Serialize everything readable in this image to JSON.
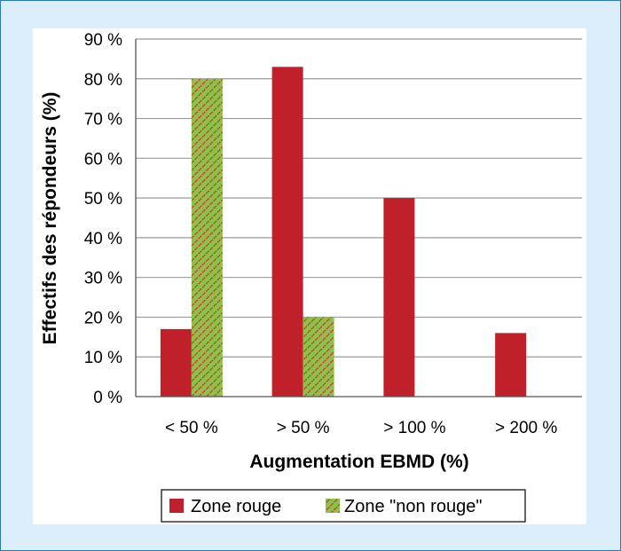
{
  "chart_data": {
    "type": "bar",
    "categories": [
      "< 50 %",
      "> 50 %",
      "> 100 %",
      "> 200 %"
    ],
    "series": [
      {
        "name": "Zone rouge",
        "values": [
          17,
          83,
          50,
          16
        ],
        "color": "#c0202a",
        "pattern": "solid"
      },
      {
        "name": "Zone \"non rouge\"",
        "values": [
          80,
          20,
          null,
          null
        ],
        "color": "#8ec04a",
        "pattern": "hatched-red"
      }
    ],
    "xlabel": "Augmentation EBMD (%)",
    "ylabel": "Effectifs des répondeurs (%)",
    "ylim": [
      0,
      90
    ],
    "yticks": [
      "0 %",
      "10 %",
      "20 %",
      "30 %",
      "40 %",
      "50 %",
      "60 %",
      "70 %",
      "80 %",
      "90 %"
    ],
    "grid": true,
    "legend_position": "bottom"
  }
}
